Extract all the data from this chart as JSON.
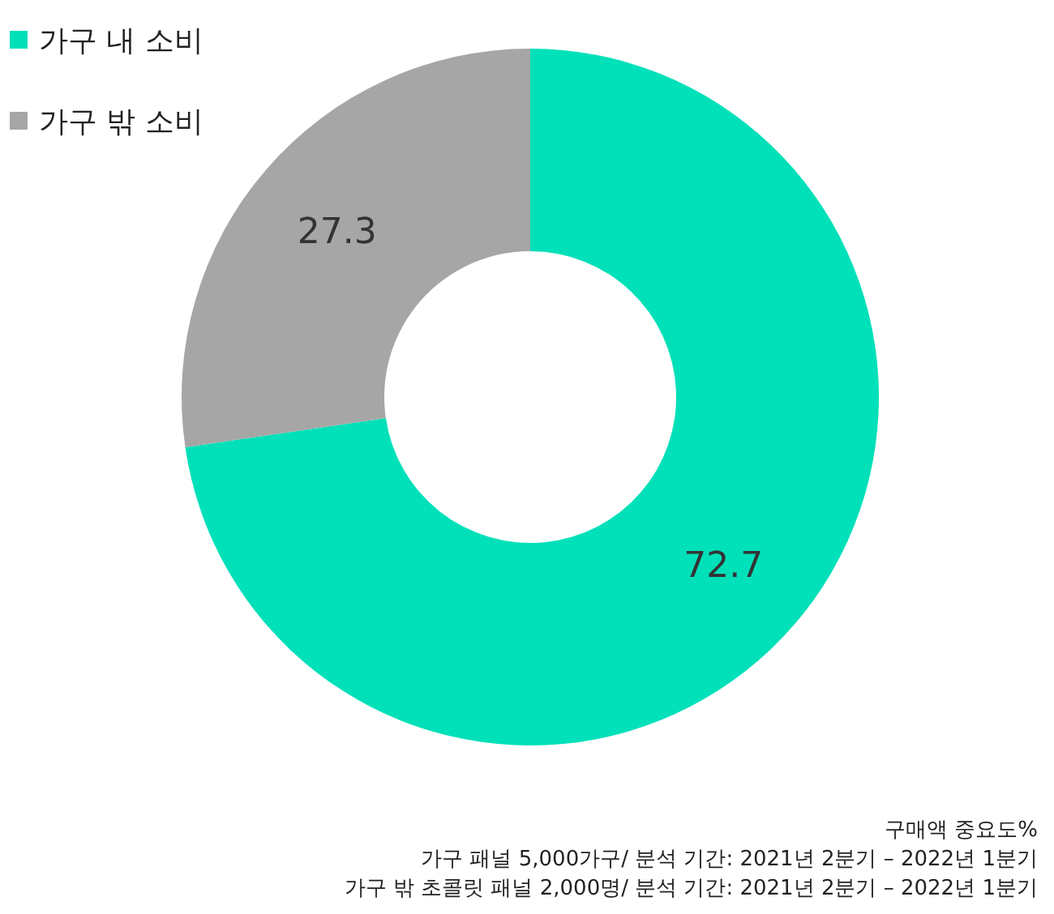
{
  "chart_data": {
    "type": "donut",
    "categories": [
      "가구 내 소비",
      "가구 밖 소비"
    ],
    "values": [
      72.7,
      27.3
    ],
    "colors": [
      "#00e0b9",
      "#a6a6a6"
    ],
    "data_labels": true,
    "legend": "top left",
    "annotations": [
      "구매액 중요도%",
      "가구 패널 5,000가구/ 분석 기간: 2021년 2분기 – 2022년 1분기",
      "가구 밖 초콜릿 패널 2,000명/ 분석 기간: 2021년 2분기 – 2022년 1분기"
    ]
  }
}
